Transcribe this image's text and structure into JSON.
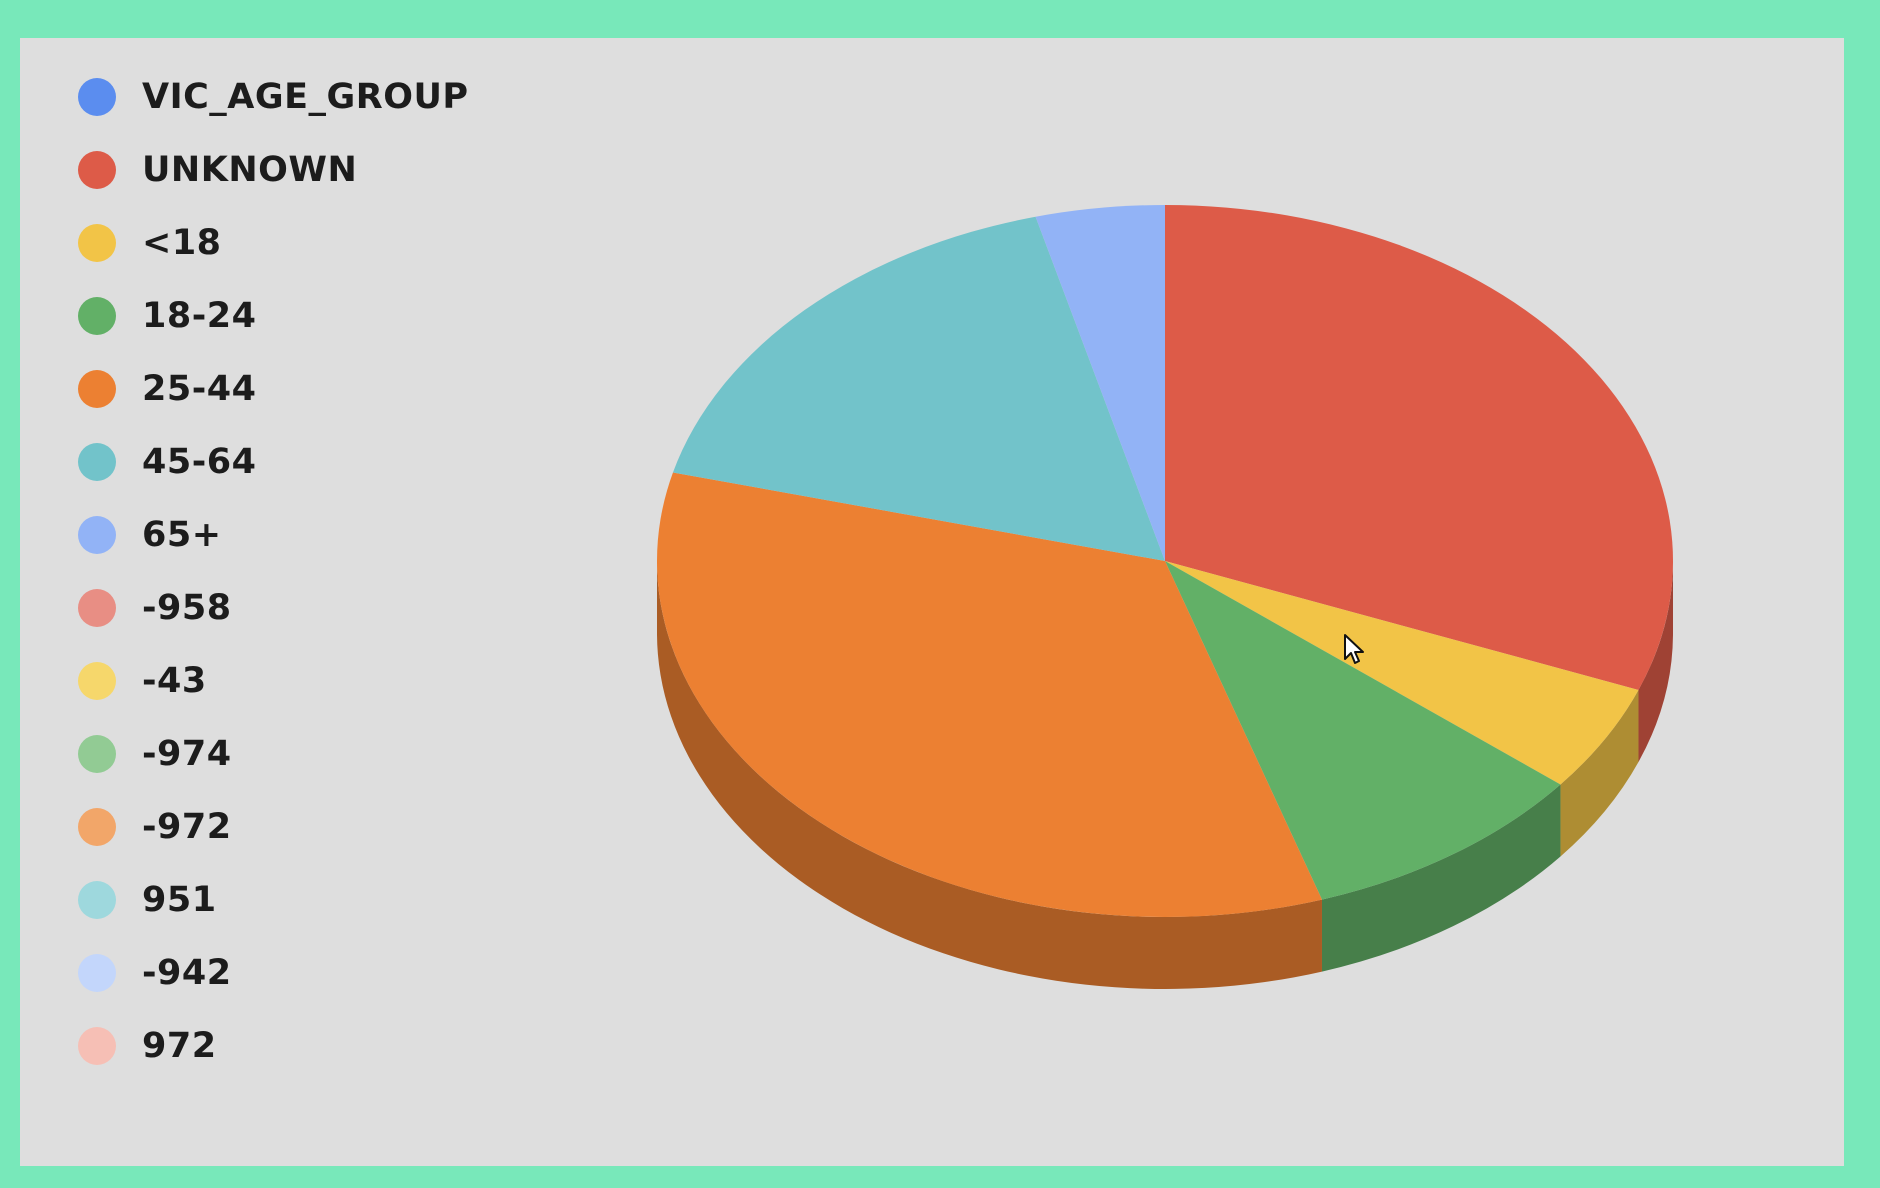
{
  "chart_data": {
    "type": "pie",
    "style": "3d",
    "title": "",
    "legend_position": "left",
    "header_entry": {
      "label": "VIC_AGE_GROUP",
      "color": "#5b8def"
    },
    "slices": [
      {
        "label": "UNKNOWN",
        "value": 30.9,
        "color": "#dd5b48"
      },
      {
        "label": "<18",
        "value": 4.9,
        "color": "#f2c447"
      },
      {
        "label": "18-24",
        "value": 9.2,
        "color": "#62b067"
      },
      {
        "label": "25-44",
        "value": 34.0,
        "color": "#ec8032"
      },
      {
        "label": "45-64",
        "value": 16.9,
        "color": "#72c3ca"
      },
      {
        "label": "65+",
        "value": 4.1,
        "color": "#92b3f6"
      }
    ],
    "extra_legend_entries": [
      {
        "label": "-958",
        "color": "#e88e84"
      },
      {
        "label": "-43",
        "color": "#f6d76b"
      },
      {
        "label": "-974",
        "color": "#92cb94"
      },
      {
        "label": "-972",
        "color": "#f2a669"
      },
      {
        "label": "951",
        "color": "#9ed8dd"
      },
      {
        "label": "-942",
        "color": "#c3d6fb"
      },
      {
        "label": "972",
        "color": "#f6bfb5"
      }
    ]
  }
}
